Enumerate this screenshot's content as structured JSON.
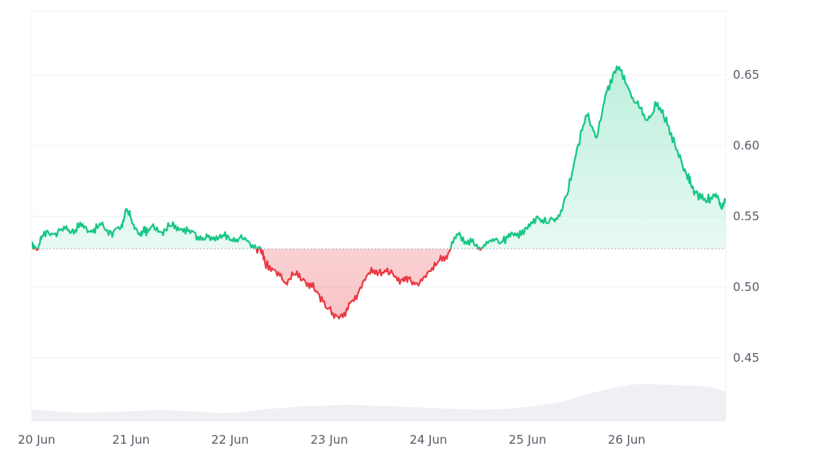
{
  "chart_data": {
    "type": "line",
    "title": "",
    "xlabel": "",
    "ylabel": "",
    "baseline_value": 0.527,
    "ylim": [
      0.405,
      0.695
    ],
    "xlim": [
      0,
      7
    ],
    "grid": true,
    "y_axis_position": "right",
    "y_ticks": [
      0.45,
      0.5,
      0.55,
      0.6,
      0.65
    ],
    "y_tick_labels": [
      "0.45",
      "0.50",
      "0.55",
      "0.60",
      "0.65"
    ],
    "x_ticks": [
      0,
      1,
      2,
      3,
      4,
      5,
      6
    ],
    "x_tick_labels": [
      "20 Jun",
      "21 Jun",
      "22 Jun",
      "23 Jun",
      "24 Jun",
      "25 Jun",
      "26 Jun"
    ],
    "colors": {
      "above": "#16c784",
      "below": "#ea3943",
      "volume": "#eef0f4",
      "grid": "#eff2f5",
      "baseline": "#a1a7bb"
    },
    "series": [
      {
        "x": [
          0,
          0.05,
          0.1,
          0.2,
          0.3,
          0.4,
          0.5,
          0.6,
          0.7,
          0.8,
          0.9,
          0.95,
          1.0,
          1.1,
          1.15,
          1.2,
          1.3,
          1.4,
          1.5,
          1.6,
          1.7,
          1.8,
          1.9,
          2.0,
          2.1,
          2.2,
          2.3,
          2.35,
          2.45,
          2.55,
          2.65,
          2.75,
          2.85,
          2.95,
          3.05,
          3.15,
          3.25,
          3.35,
          3.45,
          3.55,
          3.65,
          3.75,
          3.8,
          3.9,
          4.0,
          4.1,
          4.2,
          4.3,
          4.4,
          4.5,
          4.6,
          4.7,
          4.8,
          4.9,
          5.0,
          5.1,
          5.2,
          5.3,
          5.4,
          5.5,
          5.6,
          5.7,
          5.8,
          5.9,
          6.0,
          6.1,
          6.2,
          6.3,
          6.4,
          6.5,
          6.6,
          6.65,
          6.7,
          6.8,
          6.9,
          6.95,
          7.0
        ],
        "values": [
          0.528,
          0.526,
          0.536,
          0.538,
          0.541,
          0.539,
          0.543,
          0.54,
          0.544,
          0.539,
          0.542,
          0.555,
          0.549,
          0.536,
          0.54,
          0.542,
          0.539,
          0.543,
          0.541,
          0.538,
          0.536,
          0.533,
          0.537,
          0.533,
          0.535,
          0.531,
          0.527,
          0.518,
          0.512,
          0.503,
          0.509,
          0.505,
          0.498,
          0.49,
          0.478,
          0.482,
          0.49,
          0.505,
          0.512,
          0.51,
          0.508,
          0.504,
          0.506,
          0.501,
          0.511,
          0.518,
          0.524,
          0.537,
          0.533,
          0.527,
          0.531,
          0.533,
          0.535,
          0.538,
          0.541,
          0.55,
          0.545,
          0.548,
          0.565,
          0.598,
          0.621,
          0.606,
          0.638,
          0.656,
          0.643,
          0.63,
          0.618,
          0.628,
          0.62,
          0.597,
          0.58,
          0.572,
          0.567,
          0.56,
          0.566,
          0.556,
          0.563
        ]
      }
    ],
    "volume": [
      0.02,
      0.018,
      0.016,
      0.015,
      0.015,
      0.016,
      0.017,
      0.018,
      0.019,
      0.018,
      0.017,
      0.016,
      0.014,
      0.015,
      0.018,
      0.021,
      0.023,
      0.025,
      0.026,
      0.027,
      0.028,
      0.027,
      0.026,
      0.025,
      0.024,
      0.023,
      0.022,
      0.021,
      0.02,
      0.02,
      0.021,
      0.023,
      0.026,
      0.03,
      0.036,
      0.044,
      0.051,
      0.057,
      0.062,
      0.063,
      0.062,
      0.061,
      0.06,
      0.058,
      0.05
    ]
  }
}
